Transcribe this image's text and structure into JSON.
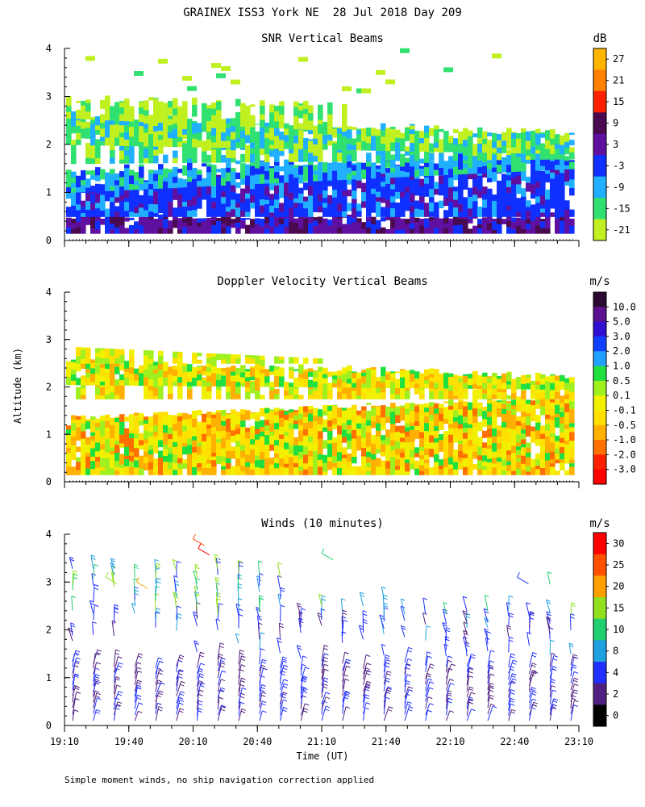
{
  "page": {
    "title": "GRAINEX ISS3 York NE  28 Jul 2018 Day 209",
    "footer": "Simple moment winds, no ship navigation correction applied",
    "ylabel": "Altitude (km)",
    "xlabel": "Time (UT)"
  },
  "chart_data": [
    {
      "type": "heatmap",
      "title": "SNR Vertical Beams",
      "ylabel": "Altitude (km)",
      "ylim": [
        0,
        4
      ],
      "yticks": [
        "0",
        "1",
        "2",
        "3",
        "4"
      ],
      "xlim": [
        "19:10",
        "23:10"
      ],
      "colorbar": {
        "unit": "dB",
        "labels": [
          "27",
          "21",
          "15",
          "9",
          "3",
          "-3",
          "-9",
          "-15",
          "-21"
        ],
        "colors": [
          "#ffb400",
          "#ff8000",
          "#ff2000",
          "#4a0a50",
          "#6010a0",
          "#1030ff",
          "#20b0ff",
          "#30e070",
          "#c0f020"
        ]
      }
    },
    {
      "type": "heatmap",
      "title": "Doppler Velocity Vertical Beams",
      "ylabel": "Altitude (km)",
      "ylim": [
        0,
        4
      ],
      "yticks": [
        "0",
        "1",
        "2",
        "3",
        "4"
      ],
      "xlim": [
        "19:10",
        "23:10"
      ],
      "colorbar": {
        "unit": "m/s",
        "labels": [
          "10.0",
          "5.0",
          "3.0",
          "2.0",
          "1.0",
          "0.5",
          "0.1",
          "-0.1",
          "-0.5",
          "-1.0",
          "-2.0",
          "-3.0"
        ],
        "colors": [
          "#2a0a30",
          "#5a1090",
          "#3010d0",
          "#1040ff",
          "#20a0ff",
          "#20e040",
          "#a0f020",
          "#f0f000",
          "#ffe000",
          "#ffb000",
          "#ff7000",
          "#ff2000",
          "#ff0000"
        ]
      }
    },
    {
      "type": "scatter",
      "title": "Winds (10 minutes)",
      "ylabel": "Altitude (km)",
      "xlabel": "Time (UT)",
      "ylim": [
        0,
        4
      ],
      "yticks": [
        "0",
        "1",
        "2",
        "3",
        "4"
      ],
      "xticks": [
        "19:10",
        "19:40",
        "20:10",
        "20:40",
        "21:10",
        "21:40",
        "22:10",
        "22:40",
        "23:10"
      ],
      "colorbar": {
        "unit": "m/s",
        "labels": [
          "30",
          "25",
          "20",
          "15",
          "10",
          "8",
          "4",
          "2",
          "0"
        ],
        "colors": [
          "#ff0000",
          "#ff5000",
          "#ffa000",
          "#90e020",
          "#20d070",
          "#20a0e0",
          "#2030ff",
          "#502080",
          "#000000"
        ]
      }
    }
  ]
}
